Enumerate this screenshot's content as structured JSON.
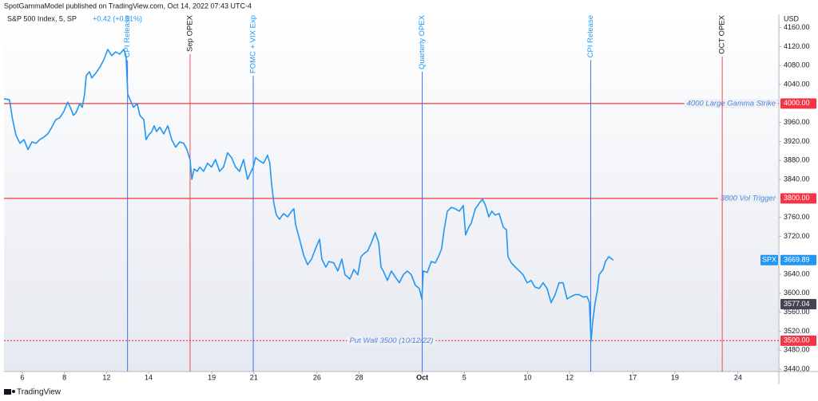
{
  "header": "SpotGammaModel published on TradingView.com, Oct 14, 2022 07:43 UTC-4",
  "footer": "TradingView",
  "chart_data": {
    "type": "line",
    "legend_title": "S&P 500 Index, 5, SP",
    "legend_change": "+0.42 (+0.01%)",
    "y_unit": "USD",
    "xlim": [
      -0.87,
      35.94
    ],
    "ylim": [
      3435,
      4188
    ],
    "grid": false,
    "xticks": [
      {
        "value": 0,
        "label": "6"
      },
      {
        "value": 2,
        "label": "8"
      },
      {
        "value": 4,
        "label": "12"
      },
      {
        "value": 6,
        "label": "14"
      },
      {
        "value": 9,
        "label": "19"
      },
      {
        "value": 11,
        "label": "21"
      },
      {
        "value": 14,
        "label": "26"
      },
      {
        "value": 16,
        "label": "28"
      },
      {
        "value": 19,
        "label": "Oct"
      },
      {
        "value": 21,
        "label": "5"
      },
      {
        "value": 24,
        "label": "10"
      },
      {
        "value": 26,
        "label": "12"
      },
      {
        "value": 29,
        "label": "17"
      },
      {
        "value": 31,
        "label": "19"
      },
      {
        "value": 34,
        "label": "24"
      }
    ],
    "yticks": [
      {
        "value": 3440,
        "label": "3440.00"
      },
      {
        "value": 3480,
        "label": "3480.00"
      },
      {
        "value": 3520,
        "label": "3520.00"
      },
      {
        "value": 3560,
        "label": "3560.00"
      },
      {
        "value": 3600,
        "label": "3600.00"
      },
      {
        "value": 3640,
        "label": "3640.00"
      },
      {
        "value": 3720,
        "label": "3720.00"
      },
      {
        "value": 3760,
        "label": "3760.00"
      },
      {
        "value": 3840,
        "label": "3840.00"
      },
      {
        "value": 3880,
        "label": "3880.00"
      },
      {
        "value": 3920,
        "label": "3920.00"
      },
      {
        "value": 3960,
        "label": "3960.00"
      },
      {
        "value": 4040,
        "label": "4040.00"
      },
      {
        "value": 4080,
        "label": "4080.00"
      },
      {
        "value": 4120,
        "label": "4120.00"
      },
      {
        "value": 4160,
        "label": "4160.00"
      }
    ],
    "series": [
      {
        "name": "SPX",
        "color": "#2196f3",
        "x": [
          -0.87,
          -0.61,
          -0.46,
          -0.3,
          -0.11,
          0.08,
          0.27,
          0.46,
          0.65,
          0.83,
          1.02,
          1.21,
          1.4,
          1.59,
          1.78,
          1.97,
          2.16,
          2.28,
          2.43,
          2.54,
          2.73,
          2.85,
          2.96,
          3.04,
          3.19,
          3.3,
          3.49,
          3.68,
          3.87,
          4.06,
          4.25,
          4.44,
          4.63,
          4.82,
          4.93,
          5.01,
          5.12,
          5.28,
          5.46,
          5.58,
          5.77,
          5.88,
          5.99,
          6.15,
          6.26,
          6.38,
          6.53,
          6.72,
          6.91,
          7.1,
          7.29,
          7.48,
          7.67,
          7.82,
          7.97,
          8.05,
          8.16,
          8.31,
          8.43,
          8.61,
          8.8,
          8.99,
          9.18,
          9.37,
          9.56,
          9.75,
          9.94,
          10.13,
          10.32,
          10.51,
          10.7,
          10.82,
          10.97,
          11.08,
          11.27,
          11.46,
          11.65,
          11.76,
          11.84,
          11.95,
          12.07,
          12.22,
          12.41,
          12.6,
          12.79,
          12.9,
          12.98,
          13.17,
          13.36,
          13.55,
          13.74,
          13.93,
          14.12,
          14.23,
          14.42,
          14.57,
          14.8,
          14.99,
          15.18,
          15.33,
          15.56,
          15.75,
          15.94,
          16.09,
          16.24,
          16.4,
          16.58,
          16.77,
          16.93,
          17.04,
          17.15,
          17.34,
          17.53,
          17.72,
          17.91,
          18.1,
          18.29,
          18.48,
          18.67,
          18.86,
          18.98,
          19.05,
          19.24,
          19.43,
          19.62,
          19.81,
          19.92,
          20.04,
          20.19,
          20.38,
          20.57,
          20.76,
          20.95,
          21.06,
          21.21,
          21.33,
          21.52,
          21.71,
          21.86,
          22.01,
          22.16,
          22.31,
          22.46,
          22.65,
          22.85,
          23.0,
          23.07,
          23.23,
          23.42,
          23.61,
          23.79,
          23.98,
          24.17,
          24.36,
          24.55,
          24.74,
          24.93,
          25.12,
          25.31,
          25.5,
          25.69,
          25.88,
          26.07,
          26.26,
          26.45,
          26.64,
          26.83,
          26.94,
          27.02,
          27.09,
          27.21,
          27.32,
          27.4,
          27.59,
          27.7,
          27.86,
          28.01,
          28.08
        ],
        "values": [
          4010,
          4008,
          3966,
          3933,
          3916,
          3924,
          3903,
          3919,
          3916,
          3924,
          3929,
          3936,
          3950,
          3966,
          3970,
          3983,
          4003,
          3992,
          3975,
          3980,
          4000,
          3992,
          4020,
          4059,
          4067,
          4054,
          4064,
          4076,
          4092,
          4114,
          4101,
          4109,
          4104,
          4114,
          4101,
          4020,
          4008,
          3992,
          4000,
          3975,
          3966,
          3924,
          3933,
          3941,
          3953,
          3941,
          3950,
          3936,
          3953,
          3924,
          3908,
          3919,
          3916,
          3903,
          3882,
          3840,
          3862,
          3857,
          3866,
          3857,
          3874,
          3866,
          3882,
          3857,
          3866,
          3896,
          3886,
          3866,
          3857,
          3882,
          3840,
          3852,
          3866,
          3886,
          3879,
          3874,
          3891,
          3874,
          3832,
          3790,
          3765,
          3756,
          3768,
          3761,
          3773,
          3778,
          3745,
          3714,
          3681,
          3660,
          3672,
          3694,
          3714,
          3672,
          3655,
          3667,
          3664,
          3647,
          3672,
          3639,
          3630,
          3650,
          3639,
          3677,
          3684,
          3689,
          3706,
          3728,
          3706,
          3655,
          3647,
          3627,
          3647,
          3634,
          3622,
          3639,
          3647,
          3639,
          3617,
          3610,
          3588,
          3647,
          3644,
          3667,
          3664,
          3681,
          3694,
          3734,
          3773,
          3781,
          3778,
          3773,
          3785,
          3723,
          3739,
          3748,
          3778,
          3790,
          3798,
          3785,
          3761,
          3773,
          3765,
          3768,
          3739,
          3734,
          3677,
          3664,
          3655,
          3647,
          3639,
          3622,
          3627,
          3613,
          3610,
          3622,
          3610,
          3580,
          3597,
          3622,
          3622,
          3588,
          3593,
          3597,
          3597,
          3592,
          3593,
          3580,
          3499,
          3538,
          3580,
          3605,
          3639,
          3650,
          3667,
          3677,
          3672,
          3670
        ]
      }
    ],
    "levels": [
      {
        "value": 4000,
        "label": "4000.00",
        "text": "4000 Large Gamma Strike",
        "style": "solid",
        "text_align": "right"
      },
      {
        "value": 3800,
        "label": "3800.00",
        "text": "3800 Vol Trigger",
        "style": "solid",
        "text_align": "right"
      },
      {
        "value": 3500,
        "label": "3500.00",
        "text": "Put Wall 3500 (10/12/22)",
        "style": "dotted",
        "text_align": "center"
      }
    ],
    "level_color": "#f23645",
    "level_text_color": "#4f86d9",
    "events": [
      {
        "x": 5.0,
        "text": "CPI Release",
        "color": "#2962ff",
        "text_color": "#2196f3"
      },
      {
        "x": 7.97,
        "text": "Sep OPEX",
        "color": "#f23645",
        "text_color": "#131722"
      },
      {
        "x": 10.97,
        "text": "FOMC + VIX Exp",
        "color": "#2962ff",
        "text_color": "#2196f3"
      },
      {
        "x": 19.0,
        "text": "Quarterly OPEX",
        "color": "#2962ff",
        "text_color": "#2196f3"
      },
      {
        "x": 27.0,
        "text": "CPI Release",
        "color": "#2962ff",
        "text_color": "#2196f3"
      },
      {
        "x": 33.25,
        "text": "OCT OPEX",
        "color": "#f23645",
        "text_color": "#131722"
      }
    ],
    "price_labels": [
      {
        "value": 3669.89,
        "label": "3669.89",
        "color": "#2196f3"
      },
      {
        "value": 3577.04,
        "label": "3577.04",
        "color": "#434651"
      }
    ]
  }
}
